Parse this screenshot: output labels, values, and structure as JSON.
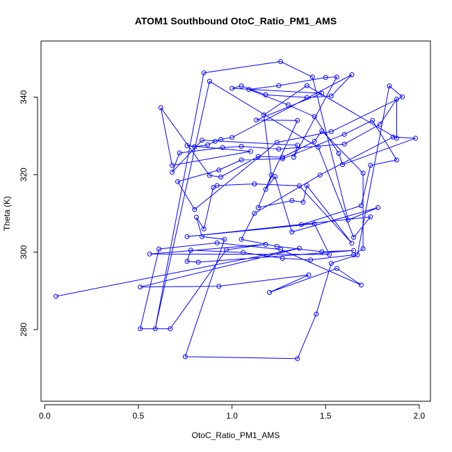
{
  "chart_data": {
    "type": "scatter",
    "title": "ATOM1 Southbound OtoC_Ratio_PM1_AMS",
    "xlabel": "OtoC_Ratio_PM1_AMS",
    "ylabel": "Theta (K)",
    "xlim": [
      -0.02,
      2.06
    ],
    "ylim": [
      261.5,
      354.5
    ],
    "xticks": [
      0.0,
      0.5,
      1.0,
      1.5,
      2.0
    ],
    "xtick_labels": [
      "0.0",
      "0.5",
      "1.0",
      "1.5",
      "2.0"
    ],
    "yticks": [
      280,
      300,
      320,
      340
    ],
    "ytick_labels": [
      "280",
      "300",
      "320",
      "340"
    ],
    "grid": false,
    "legend": "none",
    "series": [
      {
        "color": "#0000ff",
        "connected": true,
        "points": [
          [
            0.06,
            288.6
          ],
          [
            1.36,
            301.0
          ],
          [
            0.51,
            291.0
          ],
          [
            0.93,
            291.2
          ],
          [
            1.41,
            294.1
          ],
          [
            1.2,
            289.6
          ],
          [
            1.56,
            295.8
          ],
          [
            1.69,
            291.5
          ],
          [
            1.26,
            300.7
          ],
          [
            0.92,
            302.4
          ],
          [
            0.61,
            300.8
          ],
          [
            0.51,
            280.2
          ],
          [
            0.67,
            280.2
          ],
          [
            0.97,
            300.6
          ],
          [
            1.18,
            302.0
          ],
          [
            0.56,
            299.5
          ],
          [
            1.52,
            299.4
          ],
          [
            1.44,
            307.3
          ],
          [
            0.76,
            304.0
          ],
          [
            1.74,
            309.1
          ],
          [
            1.65,
            303.8
          ],
          [
            1.46,
            327.1
          ],
          [
            0.88,
            344.1
          ],
          [
            0.59,
            280.2
          ],
          [
            0.85,
            346.3
          ],
          [
            1.26,
            349.2
          ],
          [
            1.43,
            345.2
          ],
          [
            1.62,
            308.3
          ],
          [
            1.78,
            311.5
          ],
          [
            1.32,
            305.2
          ],
          [
            1.23,
            319.5
          ],
          [
            1.18,
            316.2
          ],
          [
            1.35,
            334.0
          ],
          [
            1.13,
            334.1
          ],
          [
            1.48,
            341.0
          ],
          [
            1.0,
            342.3
          ],
          [
            1.05,
            342.9
          ],
          [
            1.18,
            340.6
          ],
          [
            1.4,
            339.9
          ],
          [
            1.53,
            340.3
          ],
          [
            1.64,
            345.8
          ],
          [
            1.0,
            329.6
          ],
          [
            0.94,
            329.1
          ],
          [
            0.91,
            328.6
          ],
          [
            0.87,
            327.7
          ],
          [
            0.8,
            327.2
          ],
          [
            0.76,
            327.5
          ],
          [
            1.1,
            326.0
          ],
          [
            0.68,
            322.4
          ],
          [
            0.62,
            337.3
          ],
          [
            0.88,
            319.8
          ],
          [
            0.94,
            319.4
          ],
          [
            1.14,
            324.7
          ],
          [
            1.27,
            324.5
          ],
          [
            1.44,
            328.6
          ],
          [
            1.48,
            331.3
          ],
          [
            1.7,
            320.4
          ],
          [
            1.7,
            300.9
          ],
          [
            1.65,
            299.3
          ],
          [
            1.42,
            298.0
          ],
          [
            1.27,
            298.4
          ],
          [
            1.06,
            299.9
          ],
          [
            0.78,
            300.5
          ],
          [
            0.76,
            297.6
          ],
          [
            0.82,
            297.4
          ],
          [
            1.65,
            300.4
          ],
          [
            1.48,
            300.1
          ],
          [
            1.24,
            301.5
          ],
          [
            1.05,
            303.3
          ],
          [
            1.12,
            310.0
          ],
          [
            1.47,
            319.9
          ],
          [
            1.86,
            329.7
          ],
          [
            1.98,
            329.4
          ],
          [
            1.59,
            322.6
          ],
          [
            1.57,
            325.5
          ],
          [
            1.44,
            335.0
          ],
          [
            1.3,
            338.0
          ],
          [
            1.09,
            342.0
          ],
          [
            1.25,
            343.0
          ],
          [
            1.5,
            345.1
          ],
          [
            1.56,
            345.2
          ],
          [
            1.33,
            324.5
          ],
          [
            1.35,
            327.6
          ],
          [
            0.84,
            328.9
          ],
          [
            0.68,
            320.6
          ],
          [
            0.72,
            325.6
          ],
          [
            0.95,
            327.0
          ],
          [
            1.05,
            327.3
          ],
          [
            1.25,
            326.6
          ],
          [
            1.6,
            327.9
          ],
          [
            1.79,
            333.0
          ],
          [
            1.88,
            339.5
          ],
          [
            1.88,
            329.4
          ],
          [
            1.4,
            343.0
          ],
          [
            1.17,
            335.4
          ],
          [
            1.21,
            319.9
          ],
          [
            1.14,
            311.5
          ],
          [
            1.32,
            313.3
          ],
          [
            1.38,
            312.9
          ],
          [
            1.4,
            317.2
          ],
          [
            1.64,
            302.3
          ],
          [
            1.36,
            317.1
          ],
          [
            1.12,
            317.6
          ],
          [
            0.92,
            317.2
          ],
          [
            0.9,
            316.7
          ],
          [
            0.85,
            306.0
          ],
          [
            0.81,
            309.0
          ],
          [
            0.84,
            304.0
          ],
          [
            0.96,
            303.3
          ],
          [
            0.75,
            273.0
          ],
          [
            1.35,
            272.5
          ],
          [
            1.45,
            284.0
          ],
          [
            1.53,
            297.1
          ],
          [
            1.67,
            299.3
          ],
          [
            1.84,
            342.9
          ],
          [
            1.91,
            340.1
          ],
          [
            1.53,
            331.1
          ],
          [
            1.24,
            328.3
          ],
          [
            0.8,
            311.0
          ],
          [
            0.71,
            318.2
          ],
          [
            0.93,
            321.2
          ],
          [
            1.05,
            323.8
          ],
          [
            1.27,
            324.1
          ],
          [
            1.6,
            330.4
          ],
          [
            1.75,
            334.0
          ],
          [
            1.88,
            323.8
          ],
          [
            1.74,
            322.4
          ],
          [
            1.69,
            312.0
          ],
          [
            1.37,
            307.1
          ]
        ]
      }
    ]
  }
}
